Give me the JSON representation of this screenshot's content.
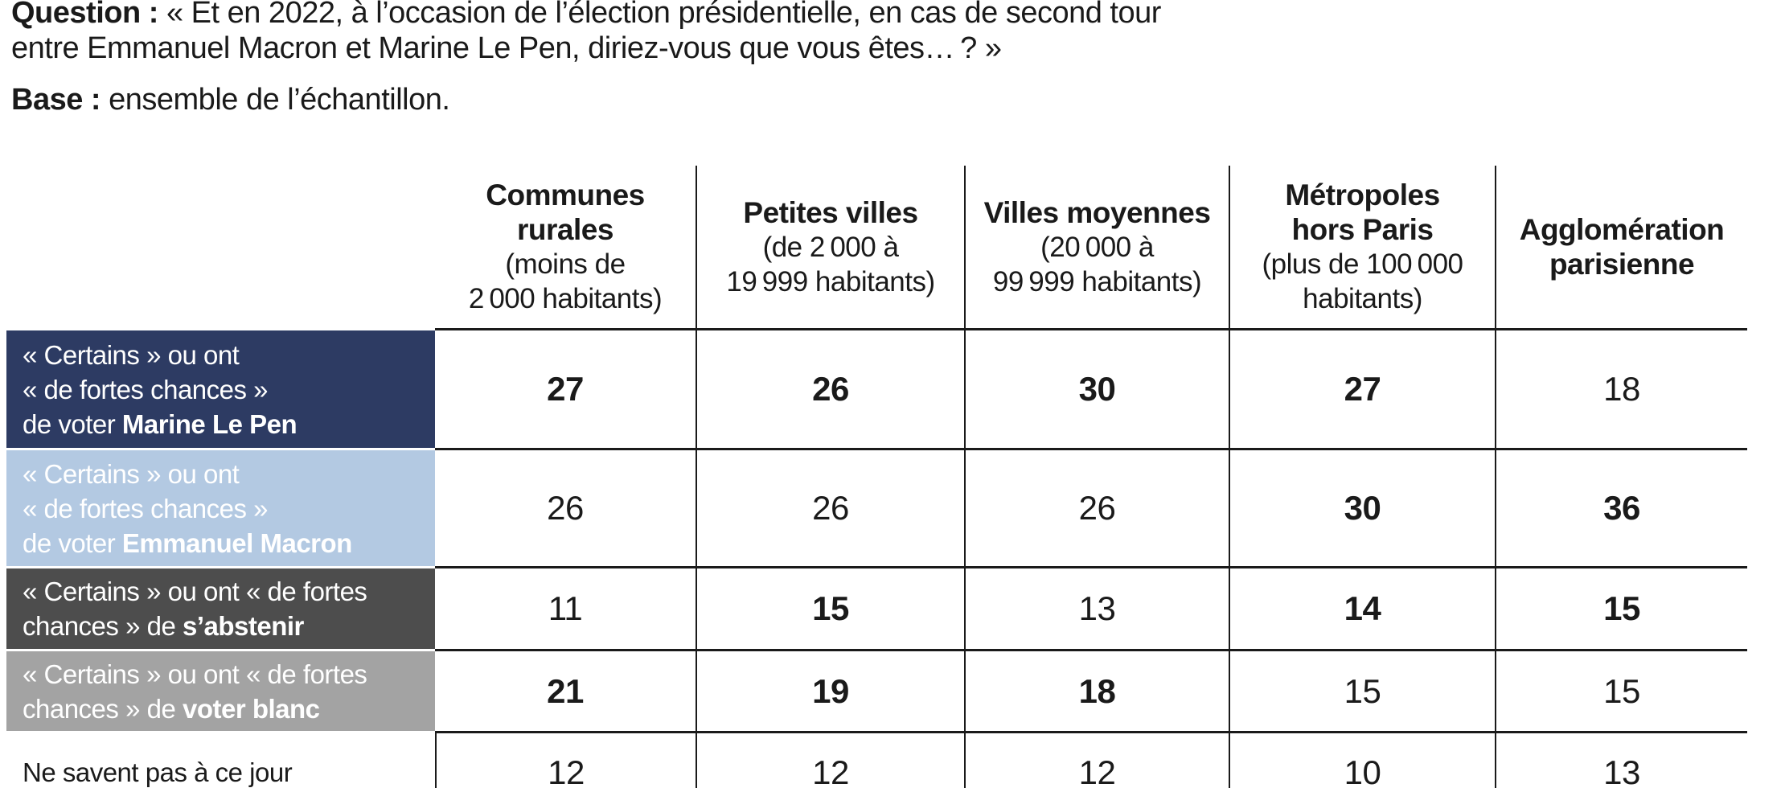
{
  "question": {
    "label": "Question :",
    "text": "« Et en 2022, à l’occasion de l’élection présidentielle, en cas de second tour\nentre Emmanuel Macron et Marine Le Pen, diriez-vous que vous êtes… ? »"
  },
  "base": {
    "label": "Base :",
    "text": "ensemble de l’échantillon."
  },
  "table": {
    "columns": [
      {
        "title": "Communes rurales",
        "subtitle": "(moins de\n2 000 habitants)"
      },
      {
        "title": "Petites villes",
        "subtitle": "(de 2 000 à\n19 999 habitants)"
      },
      {
        "title": "Villes moyennes",
        "subtitle": "(20 000 à\n99 999 habitants)"
      },
      {
        "title": "Métropoles\nhors Paris",
        "subtitle": "(plus de 100 000\nhabitants)"
      },
      {
        "title": "Agglomération\nparisienne",
        "subtitle": ""
      }
    ],
    "rows": [
      {
        "label_regular": "« Certains » ou ont\n« de fortes chances »\nde voter ",
        "label_bold": "Marine Le Pen",
        "bg": "#2d3b63",
        "fg": "#ffffff",
        "values": [
          {
            "v": "27",
            "b": true
          },
          {
            "v": "26",
            "b": true
          },
          {
            "v": "30",
            "b": true
          },
          {
            "v": "27",
            "b": true
          },
          {
            "v": "18",
            "b": false
          }
        ]
      },
      {
        "label_regular": "« Certains » ou ont\n« de fortes chances »\nde voter ",
        "label_bold": "Emmanuel Macron",
        "bg": "#b3c9e2",
        "fg": "#ffffff",
        "values": [
          {
            "v": "26",
            "b": false
          },
          {
            "v": "26",
            "b": false
          },
          {
            "v": "26",
            "b": false
          },
          {
            "v": "30",
            "b": true
          },
          {
            "v": "36",
            "b": true
          }
        ]
      },
      {
        "label_regular": "« Certains » ou ont « de fortes\nchances » de ",
        "label_bold": "s’abstenir",
        "bg": "#4d4d4d",
        "fg": "#ffffff",
        "values": [
          {
            "v": "11",
            "b": false
          },
          {
            "v": "15",
            "b": true
          },
          {
            "v": "13",
            "b": false
          },
          {
            "v": "14",
            "b": true
          },
          {
            "v": "15",
            "b": true
          }
        ]
      },
      {
        "label_regular": "« Certains » ou ont « de fortes\nchances » de ",
        "label_bold": "voter blanc",
        "bg": "#a3a3a3",
        "fg": "#ffffff",
        "values": [
          {
            "v": "21",
            "b": true
          },
          {
            "v": "19",
            "b": true
          },
          {
            "v": "18",
            "b": true
          },
          {
            "v": "15",
            "b": false
          },
          {
            "v": "15",
            "b": false
          }
        ]
      },
      {
        "label_regular": "Ne savent pas à ce jour",
        "label_bold": "",
        "bg": "#ffffff",
        "fg": "#1a1a1a",
        "values": [
          {
            "v": "12",
            "b": false
          },
          {
            "v": "12",
            "b": false
          },
          {
            "v": "12",
            "b": false
          },
          {
            "v": "10",
            "b": false
          },
          {
            "v": "13",
            "b": false
          }
        ]
      }
    ]
  },
  "colors": {
    "le_pen_navy": "#2d3b63",
    "macron_light_blue": "#b3c9e2",
    "abstention_dark_gray": "#4d4d4d",
    "vote_blanc_gray": "#a3a3a3",
    "line_black": "#1a1a1a"
  },
  "chart_data": {
    "type": "table",
    "title": "Intentions de vote au second tour 2022 selon la catégorie d'agglomération",
    "categories": [
      "Communes rurales (moins de 2 000 habitants)",
      "Petites villes (de 2 000 à 19 999 habitants)",
      "Villes moyennes (20 000 à 99 999 habitants)",
      "Métropoles hors Paris (plus de 100 000 habitants)",
      "Agglomération parisienne"
    ],
    "series": [
      {
        "name": "« Certains » ou ont « de fortes chances » de voter Marine Le Pen",
        "values": [
          27,
          26,
          30,
          27,
          18
        ]
      },
      {
        "name": "« Certains » ou ont « de fortes chances » de voter Emmanuel Macron",
        "values": [
          26,
          26,
          26,
          30,
          36
        ]
      },
      {
        "name": "« Certains » ou ont « de fortes chances » de s'abstenir",
        "values": [
          11,
          15,
          13,
          14,
          15
        ]
      },
      {
        "name": "« Certains » ou ont « de fortes chances » de voter blanc",
        "values": [
          21,
          19,
          18,
          15,
          15
        ]
      },
      {
        "name": "Ne savent pas à ce jour",
        "values": [
          12,
          12,
          12,
          10,
          13
        ]
      }
    ]
  }
}
